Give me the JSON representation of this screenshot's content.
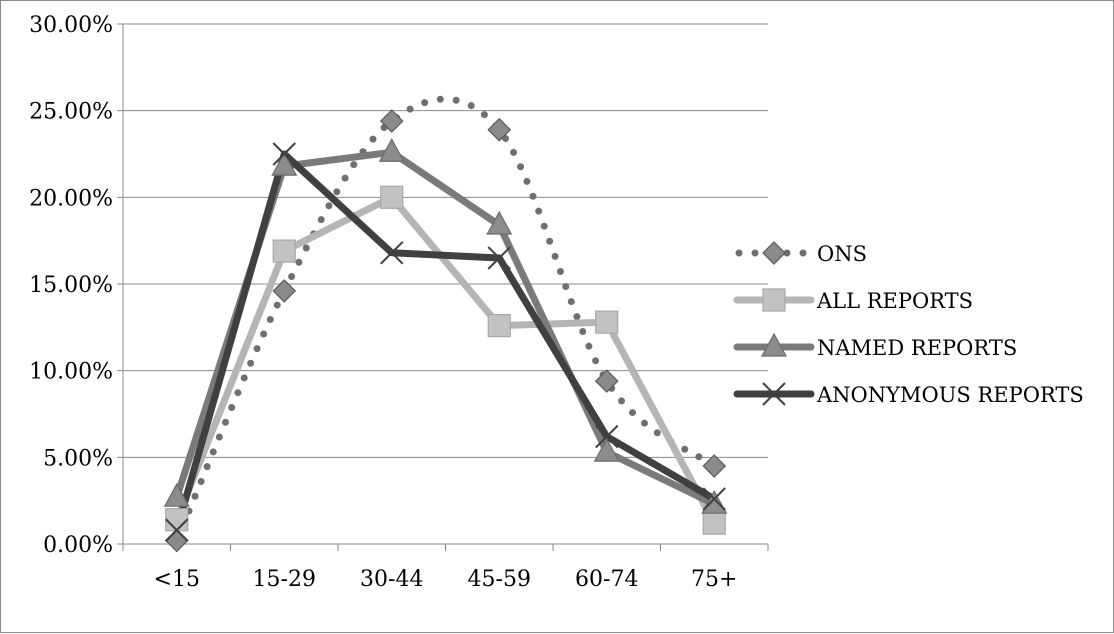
{
  "chart_data": {
    "type": "line",
    "categories": [
      "<15",
      "15-29",
      "30-44",
      "45-59",
      "60-74",
      "75+"
    ],
    "ylim": [
      0,
      0.3
    ],
    "yticks": [
      0,
      0.05,
      0.1,
      0.15,
      0.2,
      0.25,
      0.3
    ],
    "ytick_labels": [
      "0.00%",
      "5.00%",
      "10.00%",
      "15.00%",
      "20.00%",
      "25.00%",
      "30.00%"
    ],
    "grid": "horizontal",
    "legend_position": "right",
    "series": [
      {
        "name": "ONS",
        "values": [
          0.002,
          0.146,
          0.244,
          0.239,
          0.094,
          0.045
        ],
        "color": "#6f6f6f",
        "marker_color": "#8a8a8a",
        "style": "dotted",
        "marker": "diamond"
      },
      {
        "name": "ALL REPORTS",
        "values": [
          0.014,
          0.169,
          0.2,
          0.126,
          0.128,
          0.012
        ],
        "color": "#b5b5b5",
        "marker_color": "#c2c2c2",
        "style": "solid",
        "marker": "square"
      },
      {
        "name": "NAMED REPORTS",
        "values": [
          0.027,
          0.218,
          0.226,
          0.184,
          0.053,
          0.023
        ],
        "color": "#7a7a7a",
        "marker_color": "#8c8c8c",
        "style": "solid",
        "marker": "triangle"
      },
      {
        "name": "ANONYMOUS REPORTS",
        "values": [
          0.008,
          0.225,
          0.168,
          0.165,
          0.062,
          0.026
        ],
        "color": "#404040",
        "marker_color": "#404040",
        "style": "solid",
        "marker": "x"
      }
    ]
  }
}
